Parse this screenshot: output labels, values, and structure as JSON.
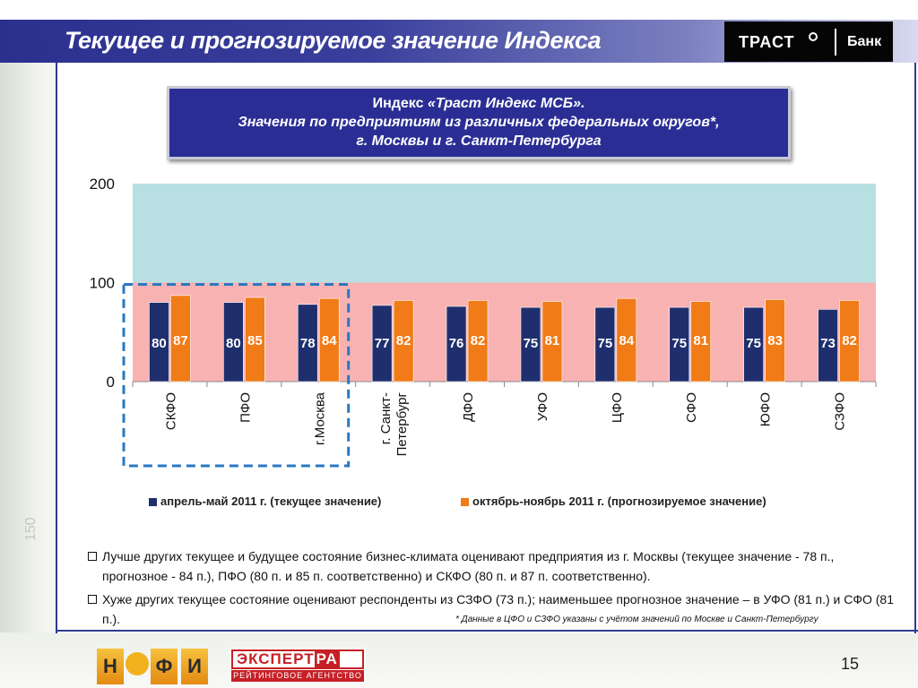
{
  "header": {
    "title": "Текущее и прогнозируемое значение Индекса",
    "logo_left": "ТРАСТ",
    "logo_right": "Банк"
  },
  "title_box": {
    "line1_plain": "Индекс ",
    "line1_italic": "«Траст Индекс МСБ».",
    "line2": "Значения по предприятиям из различных федеральных округов*,",
    "line3": "г. Москвы и г. Санкт-Петербурга"
  },
  "chart_data": {
    "type": "bar",
    "categories": [
      "СКФО",
      "ПФО",
      "г.Москва",
      "г. Санкт-Петербург",
      "ДФО",
      "УФО",
      "ЦФО",
      "СФО",
      "ЮФО",
      "СЗФО"
    ],
    "category_lines": [
      [
        "СКФО"
      ],
      [
        "ПФО"
      ],
      [
        "г.Москва"
      ],
      [
        "г. Санкт-",
        "Петербург"
      ],
      [
        "ДФО"
      ],
      [
        "УФО"
      ],
      [
        "ЦФО"
      ],
      [
        "СФО"
      ],
      [
        "ЮФО"
      ],
      [
        "СЗФО"
      ]
    ],
    "series": [
      {
        "name": "апрель-май 2011 г. (текущее значение)",
        "values": [
          80,
          80,
          78,
          77,
          76,
          75,
          75,
          75,
          75,
          73
        ],
        "color": "#1f2f6e"
      },
      {
        "name": "октябрь-ноябрь 2011 г. (прогнозируемое значение)",
        "values": [
          87,
          85,
          84,
          82,
          82,
          81,
          84,
          81,
          83,
          82
        ],
        "color": "#f07b17"
      }
    ],
    "ylim": [
      0,
      200
    ],
    "yticks": [
      0,
      100,
      200
    ],
    "bands": [
      {
        "from": 0,
        "to": 100,
        "color": "#f9b2b2"
      },
      {
        "from": 100,
        "to": 200,
        "color": "#b8dfe1"
      }
    ],
    "highlight": {
      "categories": [
        "СКФО",
        "ПФО",
        "г.Москва"
      ],
      "color": "#2a78c2"
    },
    "legend_position": "bottom",
    "grid": false
  },
  "bullets": [
    "Лучше других текущее и будущее состояние бизнес-климата оценивают предприятия из г. Москвы (текущее значение - 78 п., прогнозное - 84 п.), ПФО (80 п. и 85 п. соответственно) и СКФО (80 п. и 87 п. соответственно).",
    "Хуже других текущее состояние оценивают респонденты из СЗФО (73 п.); наименьшее прогнозное значение – в УФО (81 п.) и СФО (81 п.)."
  ],
  "footnote": "* Данные в ЦФО и СЗФО указаны с учётом значений по Москве и Санкт-Петербургу",
  "footer": {
    "nafi_logo": "НАФИ",
    "expert_logo_main": "ЭКСПЕРТ",
    "expert_logo_ra": "РА",
    "expert_logo_sub": "РЕЙТИНГОВОЕ АГЕНТСТВО",
    "page_number": "15",
    "side_number": "150"
  }
}
